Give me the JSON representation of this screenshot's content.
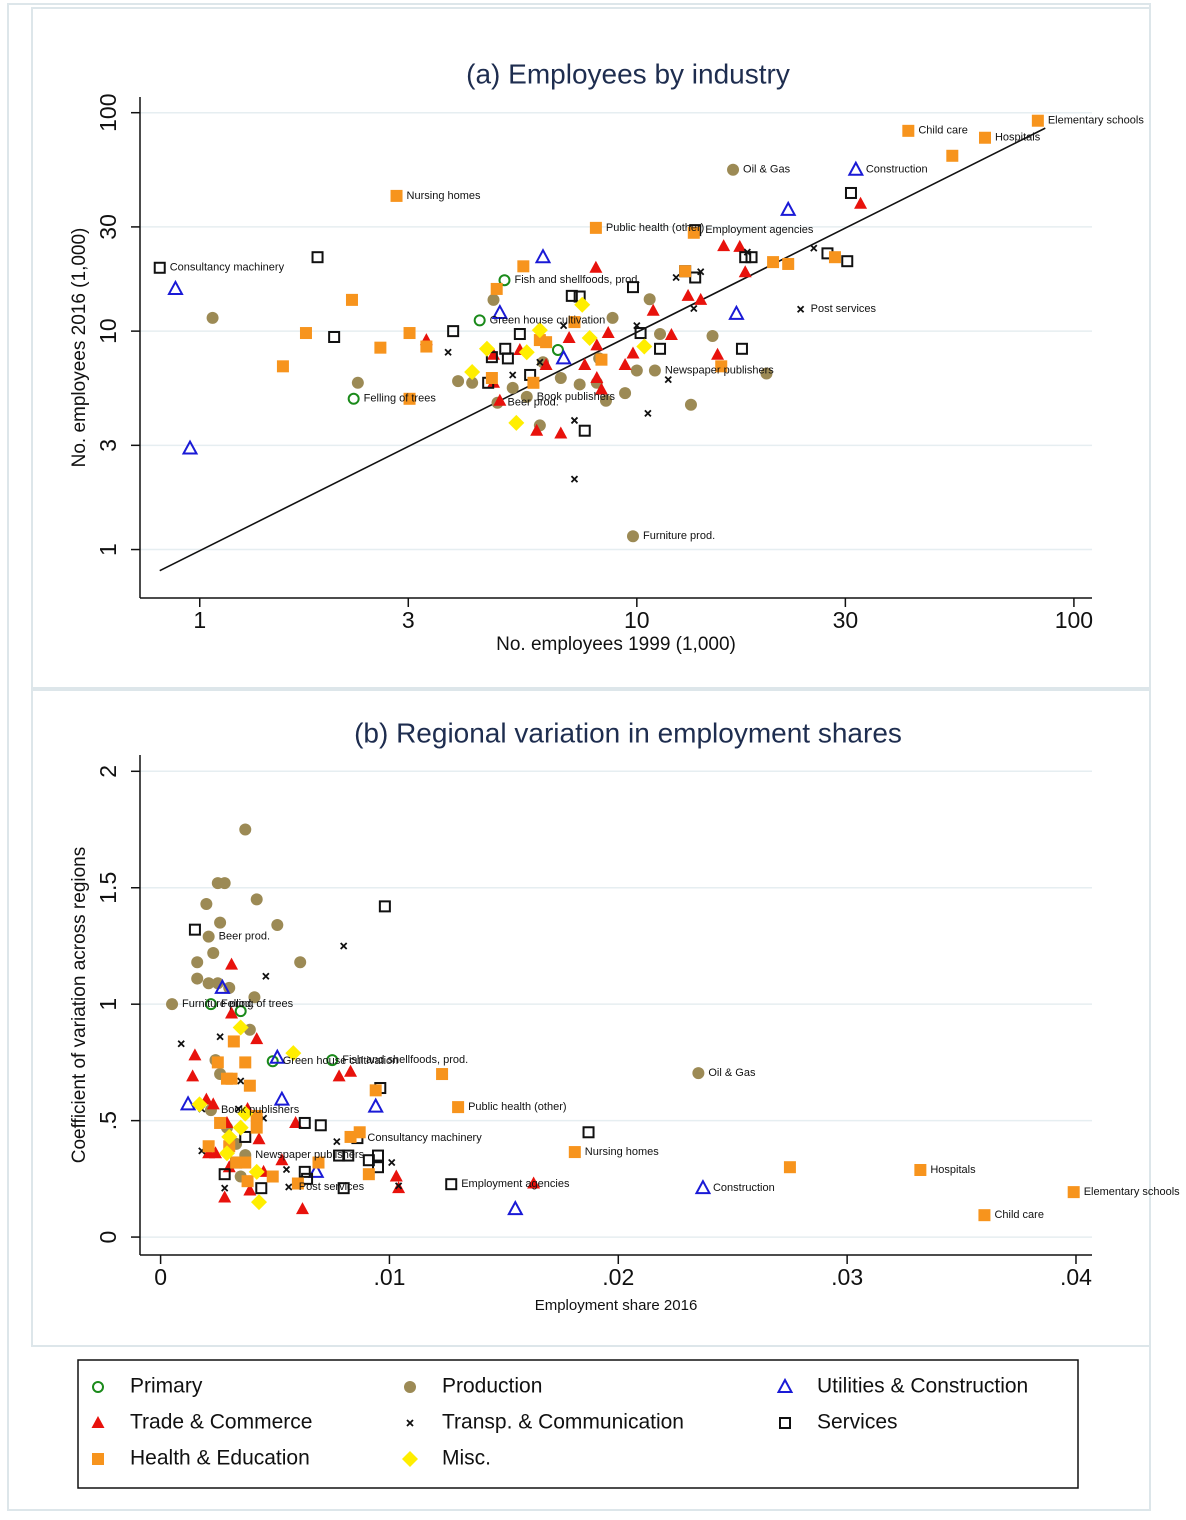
{
  "chart_data": [
    {
      "type": "scatter",
      "title": "(a) Employees by industry",
      "xlabel": "No. employees 1999 (1,000)",
      "ylabel": "No. employees 2016 (1,000)",
      "xlog": true,
      "ylog": true,
      "grid": true,
      "xlim": [
        0.73,
        110
      ],
      "ylim": [
        0.6,
        118
      ],
      "xticks": [
        1,
        3,
        10,
        30,
        100
      ],
      "yticks": [
        1,
        3,
        10,
        30,
        100
      ],
      "fit_line": {
        "x": [
          0.81,
          86
        ],
        "y": [
          0.8,
          85
        ]
      },
      "series": [
        {
          "name": "Primary",
          "color": "#1a8a1a",
          "marker": "circle-open",
          "x": [
            4.98,
            4.37,
            2.25,
            6.6
          ],
          "y": [
            17.1,
            11.2,
            4.9,
            8.2
          ]
        },
        {
          "name": "Production",
          "color": "#9c8a55",
          "marker": "circle",
          "x": [
            16.6,
            9.8,
            4.8,
            5.6,
            11.0,
            1.07,
            2.3,
            3.9,
            4.2,
            4.7,
            5.2,
            6.0,
            6.7,
            7.4,
            8.1,
            8.5,
            8.8,
            9.4,
            10,
            10.7,
            11.3,
            13.3,
            14.9,
            19.8,
            8.2,
            6.1
          ],
          "y": [
            54.8,
            1.15,
            4.7,
            5.0,
            6.6,
            11.5,
            5.8,
            5.9,
            5.8,
            13.9,
            5.5,
            3.7,
            6.1,
            5.7,
            5.8,
            4.8,
            11.5,
            5.2,
            6.6,
            14.0,
            9.7,
            4.6,
            9.5,
            6.4,
            7.5,
            7.2
          ]
        },
        {
          "name": "Utilities & Construction",
          "color": "#1a1ad6",
          "marker": "triangle-open",
          "x": [
            31.7,
            0.88,
            0.95,
            6.1,
            4.86,
            6.8,
            16.9,
            22.2
          ],
          "y": [
            54.8,
            15.6,
            2.9,
            21.8,
            12.1,
            7.5,
            12.0,
            35.9
          ]
        },
        {
          "name": "Trade & Commerce",
          "color": "#e8120c",
          "marker": "triangle",
          "x": [
            32.5,
            8.06,
            15.8,
            17.2,
            17.7,
            13.1,
            14.0,
            10.9,
            12.0,
            9.8,
            8.6,
            7.0,
            8.1,
            3.3,
            4.7,
            5.4,
            6.2,
            7.6,
            8.1,
            4.7,
            4.86,
            5.9,
            6.7,
            15.3,
            9.4,
            8.3
          ],
          "y": [
            38.3,
            19.5,
            24.5,
            24.3,
            18.6,
            14.5,
            13.9,
            12.4,
            9.6,
            7.9,
            9.8,
            9.3,
            8.6,
            9.1,
            7.8,
            8.2,
            7.0,
            7.0,
            6.1,
            5.8,
            4.8,
            3.5,
            3.4,
            7.8,
            7.0,
            5.4
          ]
        },
        {
          "name": "Transp. & Communication",
          "color": "#111111",
          "marker": "x",
          "x": [
            23.7,
            25.4,
            12.3,
            14.0,
            13.5,
            10.0,
            6.8,
            3.7,
            6.0,
            5.2,
            7.2,
            10.6,
            7.2,
            11.8,
            17.9
          ],
          "y": [
            12.6,
            24.0,
            17.6,
            18.7,
            12.7,
            10.6,
            10.6,
            8.0,
            7.2,
            6.3,
            3.9,
            4.2,
            2.1,
            6.0,
            23.0
          ]
        },
        {
          "name": "Services",
          "color": "#111111",
          "marker": "square-open",
          "x": [
            0.81,
            13.6,
            1.86,
            2.03,
            3.8,
            4.66,
            5.0,
            5.4,
            5.07,
            5.7,
            7.1,
            7.4,
            9.8,
            10.2,
            11.3,
            12.9,
            13.6,
            17.7,
            18.3,
            27.3,
            30.3,
            30.9,
            17.4,
            7.6,
            4.57
          ],
          "y": [
            19.5,
            29.0,
            21.8,
            9.4,
            10,
            7.6,
            8.3,
            9.7,
            7.5,
            6.3,
            14.5,
            14.4,
            15.9,
            9.8,
            8.3,
            18.8,
            17.6,
            21.8,
            21.8,
            22.7,
            20.9,
            42.9,
            8.3,
            3.5,
            5.8
          ]
        },
        {
          "name": "Health & Education",
          "color": "#f7941d",
          "marker": "square",
          "x": [
            41.8,
            62.6,
            82.7,
            2.82,
            8.06,
            52.7,
            13.5,
            1.55,
            1.75,
            2.23,
            2.59,
            3.02,
            3.3,
            3.02,
            4.78,
            5.5,
            6.2,
            6.0,
            7.2,
            8.3,
            4.66,
            5.8,
            12.9,
            15.6,
            20.5,
            22.2,
            28.4
          ],
          "y": [
            82.6,
            76.8,
            91.9,
            41.6,
            29.7,
            63.5,
            28.2,
            6.9,
            9.8,
            13.9,
            8.4,
            9.8,
            8.5,
            4.9,
            15.6,
            19.8,
            8.9,
            9.1,
            11.0,
            7.4,
            6.1,
            5.8,
            18.8,
            6.9,
            20.7,
            20.3,
            21.8
          ]
        },
        {
          "name": "Misc.",
          "color": "#ffee00",
          "marker": "diamond",
          "x": [
            6.0,
            7.5,
            5.6,
            4.54,
            4.2,
            5.3,
            7.8,
            10.4
          ],
          "y": [
            10.1,
            13.2,
            8.0,
            8.3,
            6.5,
            3.8,
            9.3,
            8.5
          ]
        }
      ],
      "annotations": [
        {
          "text": "Elementary schools",
          "x": 82.7,
          "y": 91.9
        },
        {
          "text": "Child care",
          "x": 41.8,
          "y": 82.6
        },
        {
          "text": "Hospitals",
          "x": 62.6,
          "y": 76.8
        },
        {
          "text": "Oil & Gas",
          "x": 16.6,
          "y": 54.8
        },
        {
          "text": "Construction",
          "x": 31.7,
          "y": 54.8
        },
        {
          "text": "Nursing homes",
          "x": 2.82,
          "y": 41.6
        },
        {
          "text": "Public health (other)",
          "x": 8.06,
          "y": 29.7
        },
        {
          "text": "Employment agencies",
          "x": 13.6,
          "y": 29.0
        },
        {
          "text": "Consultancy machinery",
          "x": 0.81,
          "y": 19.5
        },
        {
          "text": "Fish and shellfoods, prod.",
          "x": 4.98,
          "y": 17.1
        },
        {
          "text": "Post services",
          "x": 23.7,
          "y": 12.6
        },
        {
          "text": "Green house cultivation",
          "x": 4.37,
          "y": 11.2
        },
        {
          "text": "Newspaper publishers",
          "x": 11.0,
          "y": 6.6
        },
        {
          "text": "Felling of trees",
          "x": 2.25,
          "y": 4.9
        },
        {
          "text": "Book publishers",
          "x": 5.6,
          "y": 5.0
        },
        {
          "text": "Beer prod.",
          "x": 4.8,
          "y": 4.7
        },
        {
          "text": "Furniture prod.",
          "x": 9.8,
          "y": 1.15
        }
      ]
    },
    {
      "type": "scatter",
      "title": "(b) Regional variation in employment shares",
      "xlabel": "Employment share 2016",
      "ylabel": "Coefficient of variation across regions",
      "xlog": false,
      "ylog": false,
      "grid": true,
      "xlim": [
        -0.0009,
        0.0407
      ],
      "ylim": [
        -0.077,
        2.07
      ],
      "xticks": [
        0,
        {
          "value": 0.01,
          "label": ".01"
        },
        {
          "value": 0.02,
          "label": ".02"
        },
        {
          "value": 0.03,
          "label": ".03"
        },
        {
          "value": 0.04,
          "label": ".04"
        }
      ],
      "yticks": [
        0,
        {
          "value": 0.5,
          "label": ".5"
        },
        1,
        1.5,
        2
      ],
      "series": [
        {
          "color": "#1a8a1a",
          "marker": "circle-open",
          "x": [
            0.0022,
            0.0075,
            0.0049,
            0.0035
          ],
          "y": [
            1.0,
            0.76,
            0.755,
            0.97
          ]
        },
        {
          "color": "#9c8a55",
          "marker": "circle",
          "x": [
            0.0235,
            0.0037,
            0.0022,
            0.0021,
            0.0005,
            0.0037,
            0.0025,
            0.0028,
            0.002,
            0.0042,
            0.0026,
            0.0051,
            0.0016,
            0.0061,
            0.0023,
            0.0016,
            0.0021,
            0.0025,
            0.003,
            0.0041,
            0.0039,
            0.0024,
            0.0026,
            0.0029,
            0.0033,
            0.0035
          ],
          "y": [
            0.704,
            0.352,
            0.545,
            1.29,
            1.0,
            1.75,
            1.52,
            1.52,
            1.43,
            1.45,
            1.35,
            1.34,
            1.18,
            1.18,
            1.22,
            1.11,
            1.09,
            1.09,
            1.07,
            1.03,
            0.89,
            0.76,
            0.7,
            0.47,
            0.4,
            0.26
          ]
        },
        {
          "color": "#1a1ad6",
          "marker": "triangle-open",
          "x": [
            0.0237,
            0.0155,
            0.0027,
            0.0012,
            0.0053,
            0.0094,
            0.0051,
            0.0068
          ],
          "y": [
            0.21,
            0.12,
            1.07,
            0.57,
            0.59,
            0.56,
            0.77,
            0.28
          ]
        },
        {
          "color": "#e8120c",
          "marker": "triangle",
          "x": [
            0.0163,
            0.0031,
            0.0031,
            0.0042,
            0.0015,
            0.0014,
            0.0083,
            0.0078,
            0.002,
            0.0023,
            0.0029,
            0.0038,
            0.0059,
            0.0043,
            0.0021,
            0.0024,
            0.003,
            0.0053,
            0.0103,
            0.0104,
            0.0028,
            0.0039,
            0.0062,
            0.0045
          ],
          "y": [
            0.23,
            1.17,
            0.96,
            0.85,
            0.78,
            0.69,
            0.71,
            0.69,
            0.59,
            0.57,
            0.49,
            0.55,
            0.49,
            0.42,
            0.36,
            0.36,
            0.3,
            0.33,
            0.26,
            0.21,
            0.17,
            0.2,
            0.12,
            0.28
          ]
        },
        {
          "color": "#111111",
          "marker": "x",
          "x": [
            0.0056,
            0.008,
            0.0046,
            0.0009,
            0.0026,
            0.0035,
            0.0018,
            0.0045,
            0.0018,
            0.0077,
            0.0101,
            0.0028,
            0.0055,
            0.0104,
            0.0034
          ],
          "y": [
            0.215,
            1.25,
            1.12,
            0.83,
            0.86,
            0.67,
            0.55,
            0.51,
            0.37,
            0.41,
            0.32,
            0.21,
            0.29,
            0.22,
            0.55
          ]
        },
        {
          "color": "#111111",
          "marker": "square-open",
          "x": [
            0.0127,
            0.0086,
            0.0098,
            0.0015,
            0.0187,
            0.0096,
            0.0063,
            0.007,
            0.0078,
            0.0082,
            0.0091,
            0.0095,
            0.0095,
            0.008,
            0.0063,
            0.0064,
            0.0037,
            0.0033,
            0.0028,
            0.0044
          ],
          "y": [
            0.227,
            0.425,
            1.42,
            1.32,
            0.45,
            0.64,
            0.49,
            0.48,
            0.35,
            0.35,
            0.33,
            0.35,
            0.3,
            0.21,
            0.28,
            0.25,
            0.43,
            0.32,
            0.27,
            0.21
          ]
        },
        {
          "color": "#f7941d",
          "marker": "square",
          "x": [
            0.0399,
            0.036,
            0.0332,
            0.0181,
            0.013,
            0.0275,
            0.0123,
            0.0094,
            0.0083,
            0.0087,
            0.0091,
            0.0025,
            0.0032,
            0.0037,
            0.0039,
            0.0029,
            0.0031,
            0.0042,
            0.0042,
            0.0026,
            0.0021,
            0.0033,
            0.0037,
            0.0049,
            0.006,
            0.0069,
            0.0038,
            0.003
          ],
          "y": [
            0.193,
            0.094,
            0.288,
            0.365,
            0.558,
            0.3,
            0.7,
            0.63,
            0.43,
            0.45,
            0.27,
            0.75,
            0.84,
            0.75,
            0.65,
            0.68,
            0.68,
            0.52,
            0.47,
            0.49,
            0.39,
            0.32,
            0.32,
            0.26,
            0.23,
            0.32,
            0.24,
            0.39
          ]
        },
        {
          "color": "#ffee00",
          "marker": "diamond",
          "x": [
            0.0058,
            0.0035,
            0.0037,
            0.0017,
            0.003,
            0.0035,
            0.0042,
            0.0043,
            0.0029
          ],
          "y": [
            0.79,
            0.9,
            0.53,
            0.57,
            0.43,
            0.47,
            0.28,
            0.15,
            0.36
          ]
        }
      ],
      "annotations": [
        {
          "text": "Elementary schools",
          "x": 0.0399,
          "y": 0.193
        },
        {
          "text": "Child care",
          "x": 0.036,
          "y": 0.094
        },
        {
          "text": "Hospitals",
          "x": 0.0332,
          "y": 0.288
        },
        {
          "text": "Oil & Gas",
          "x": 0.0235,
          "y": 0.704
        },
        {
          "text": "Construction",
          "x": 0.0237,
          "y": 0.21
        },
        {
          "text": "Nursing homes",
          "x": 0.0181,
          "y": 0.365
        },
        {
          "text": "Employment agencies",
          "x": 0.0127,
          "y": 0.227
        },
        {
          "text": "Public health (other)",
          "x": 0.013,
          "y": 0.558
        },
        {
          "text": "Consultancy machinery",
          "x": 0.0086,
          "y": 0.425
        },
        {
          "text": "Post services",
          "x": 0.0056,
          "y": 0.215
        },
        {
          "text": "Newspaper publishers",
          "x": 0.0037,
          "y": 0.352
        },
        {
          "text": "Book publishers",
          "x": 0.0022,
          "y": 0.545
        },
        {
          "text": "Beer prod.",
          "x": 0.0021,
          "y": 1.29
        },
        {
          "text": "Furniture prod.",
          "x": 0.0005,
          "y": 1.0
        },
        {
          "text": "Felling of trees",
          "x": 0.0022,
          "y": 1.0
        },
        {
          "text": "Fish and shellfoods, prod.",
          "x": 0.0075,
          "y": 0.76
        },
        {
          "text": "Green house cultivation",
          "x": 0.0049,
          "y": 0.755
        }
      ]
    }
  ]
}
